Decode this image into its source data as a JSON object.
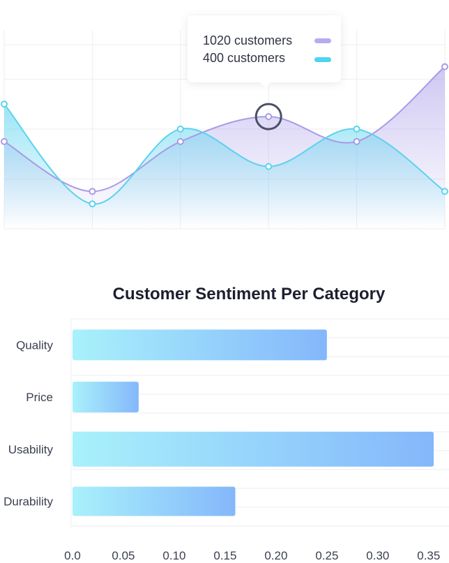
{
  "tooltip": {
    "rows": [
      {
        "label": "1020 customers",
        "color": "#b6abef"
      },
      {
        "label": "400 customers",
        "color": "#4dd4ef"
      }
    ]
  },
  "colors": {
    "purple_line": "#a89ae8",
    "cyan_line": "#5ad3ee",
    "grid": "#eceef2",
    "bar_start": "#a9f1fb",
    "bar_end": "#84b7fb",
    "focus_ring": "#4a5068"
  },
  "line_chart": {
    "type": "area",
    "x": [
      0,
      1,
      2,
      3,
      4,
      5
    ],
    "series": [
      {
        "values": [
          0.3,
          0.1,
          0.3,
          0.4,
          0.3,
          0.6
        ]
      },
      {
        "values": [
          0.45,
          0.05,
          0.35,
          0.2,
          0.35,
          0.1
        ]
      }
    ],
    "ylim": [
      -0.05,
      0.75
    ],
    "focus_index": 3
  },
  "chart_data": {
    "type": "bar",
    "title": "Customer Sentiment Per Category",
    "categories": [
      "Quality",
      "Price",
      "Usability",
      "Durability"
    ],
    "values": [
      0.25,
      0.065,
      0.355,
      0.16
    ],
    "ticks": [
      "0.0",
      "0.05",
      "0.10",
      "0.15",
      "0.20",
      "0.25",
      "0.30",
      "0.35"
    ],
    "xlim": [
      0,
      0.37
    ],
    "grid": true,
    "orientation": "horizontal"
  }
}
